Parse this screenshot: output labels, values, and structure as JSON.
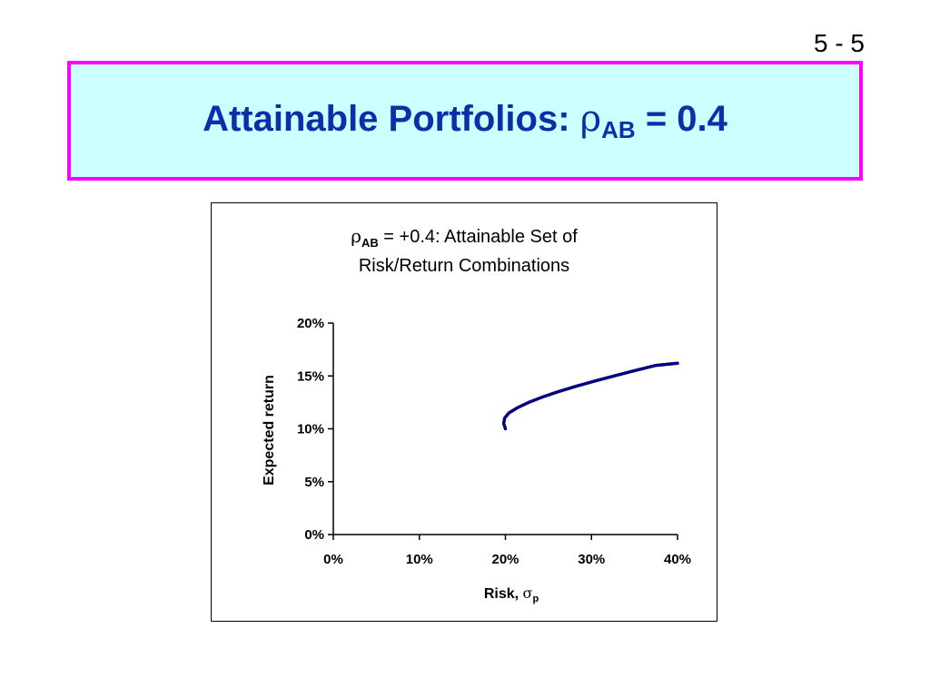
{
  "slide": {
    "page_number": "5 - 5",
    "title_text": "Attainable Portfolios: ",
    "title_symbol": "ρ",
    "title_subscript": "AB",
    "title_suffix": " = 0.4"
  },
  "colors": {
    "title": "#0b2fa8",
    "title_border": "#ff00ff",
    "title_background": "#ccffff",
    "series_line": "#000080"
  },
  "chart_data": {
    "type": "line",
    "title_line1_symbol": "ρ",
    "title_line1_subscript": "AB",
    "title_line1_text": " = +0.4:  Attainable Set of",
    "title_line2": "Risk/Return Combinations",
    "xlabel_text": "Risk, ",
    "xlabel_symbol": "σ",
    "xlabel_subscript": "p",
    "ylabel": "Expected return",
    "xlim": [
      0,
      40
    ],
    "ylim": [
      0,
      20
    ],
    "x_ticks": [
      0,
      10,
      20,
      30,
      40
    ],
    "x_tick_labels": [
      "0%",
      "10%",
      "20%",
      "30%",
      "40%"
    ],
    "y_ticks": [
      0,
      5,
      10,
      15,
      20
    ],
    "y_tick_labels": [
      "0%",
      "5%",
      "10%",
      "15%",
      "20%"
    ],
    "grid": false,
    "legend": "none",
    "series": [
      {
        "x": [
          20.0,
          19.8,
          19.9,
          20.4,
          21.4,
          22.7,
          24.3,
          26.1,
          28.1,
          30.3,
          32.6,
          35.0,
          37.5,
          40.0
        ],
        "y": [
          10.0,
          10.5,
          11.0,
          11.5,
          12.0,
          12.5,
          13.0,
          13.5,
          14.0,
          14.5,
          15.0,
          15.5,
          16.0,
          16.2
        ]
      }
    ]
  }
}
